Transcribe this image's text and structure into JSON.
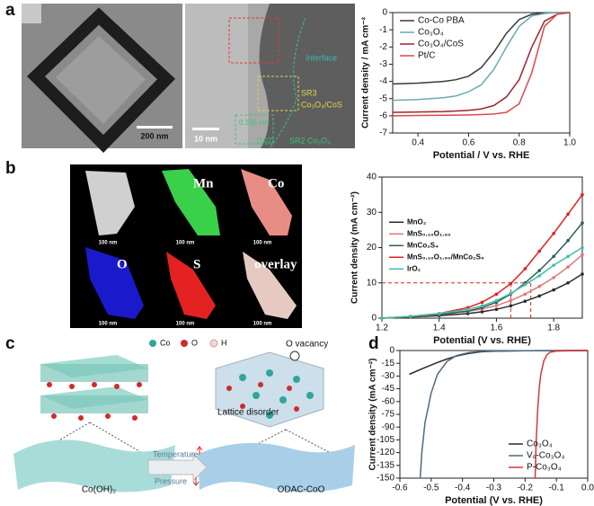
{
  "figure": {
    "panel_labels": [
      "a",
      "b",
      "c",
      "d"
    ],
    "tem": {
      "scale": "200 nm"
    },
    "hrtem": {
      "scale": "10 nm",
      "labels": [
        "Interface",
        "SR3",
        "Co₃O₄/CoS",
        "0.195 nm",
        "(102)",
        "SR2 Co₃O₄"
      ]
    },
    "eds": {
      "elements": [
        "Mn",
        "Co",
        "O",
        "S",
        "overlay"
      ],
      "scales": [
        "100 nm",
        "100 nm",
        "100 nm",
        "100 nm",
        "100 nm",
        "100 nm"
      ]
    },
    "schematic": {
      "legend": [
        "Co",
        "O",
        "H"
      ],
      "labels": [
        "O vacancy",
        "Lattice disorder",
        "Temperature",
        "Pressure",
        "Co(OH)₂",
        "ODAC-CoO"
      ]
    }
  },
  "chart_data": [
    {
      "type": "line",
      "x_label": "Potential / V vs. RHE",
      "y_label": "Current density / mA cm⁻²",
      "x": [
        0.3,
        0.4,
        0.5,
        0.55,
        0.6,
        0.65,
        0.7,
        0.75,
        0.8,
        0.85,
        0.9,
        0.95,
        1.0
      ],
      "series": [
        {
          "name": "Co-Co PBA",
          "color": "#3a3a3a",
          "values": [
            -4.15,
            -4.1,
            -4.0,
            -3.9,
            -3.7,
            -3.2,
            -2.3,
            -1.2,
            -0.4,
            -0.1,
            -0.02,
            0,
            0
          ]
        },
        {
          "name": "Co₃O₄",
          "color": "#6fa7b5",
          "values": [
            -5.1,
            -5.05,
            -4.95,
            -4.85,
            -4.6,
            -4.2,
            -3.3,
            -2.0,
            -0.8,
            -0.2,
            -0.05,
            0,
            0
          ]
        },
        {
          "name": "Co₃O₄/CoS",
          "color": "#a0262e",
          "values": [
            -5.8,
            -5.78,
            -5.75,
            -5.72,
            -5.68,
            -5.6,
            -5.4,
            -4.9,
            -3.9,
            -2.0,
            -0.5,
            -0.1,
            0
          ]
        },
        {
          "name": "Pt/C",
          "color": "#e0474c",
          "values": [
            -6.0,
            -5.98,
            -5.97,
            -5.96,
            -5.95,
            -5.93,
            -5.9,
            -5.8,
            -5.3,
            -3.5,
            -0.8,
            -0.1,
            0
          ]
        }
      ],
      "xlim": [
        0.3,
        1.0
      ],
      "xticks": [
        0.4,
        0.6,
        0.8,
        {
          "value": 1,
          "label": "1.0"
        }
      ],
      "ylim": [
        -7,
        0
      ],
      "yticks": [
        0,
        -1,
        -2,
        -3,
        -4,
        -5,
        -6,
        -7
      ],
      "legend": "upper left"
    },
    {
      "type": "line",
      "x_label": "Potential (V vs. RHE)",
      "y_label": "Current density (mA cm⁻²)",
      "x": [
        1.2,
        1.3,
        1.4,
        1.5,
        1.55,
        1.6,
        1.65,
        1.7,
        1.75,
        1.8,
        1.85,
        1.9
      ],
      "series": [
        {
          "name": "MnO₂",
          "color": "#2b2b2b",
          "values": [
            0,
            0.3,
            0.7,
            1.3,
            1.8,
            2.5,
            3.5,
            4.8,
            6.3,
            8.0,
            10,
            12.5
          ]
        },
        {
          "name": "MnS₀.₁₀O₁.₉₀",
          "color": "#e07a7a",
          "values": [
            0,
            0.4,
            1.0,
            1.9,
            2.6,
            3.6,
            5.0,
            6.8,
            9.0,
            11.5,
            14.5,
            18
          ]
        },
        {
          "name": "MnCo₂S₄",
          "color": "#2e5f5c",
          "values": [
            0,
            0.4,
            1.0,
            2.0,
            3.0,
            4.5,
            6.8,
            10,
            13.5,
            17.5,
            22,
            27
          ]
        },
        {
          "name": "MnS₀.₁₀O₁.₉₀/MnCo₂S₄",
          "color": "#e02020",
          "values": [
            0,
            0.5,
            1.3,
            3.0,
            4.5,
            6.8,
            9.8,
            14,
            19,
            24,
            29.5,
            35
          ]
        },
        {
          "name": "IrO₂",
          "color": "#3fbfa5",
          "values": [
            0,
            0.5,
            1.3,
            2.5,
            3.5,
            5,
            7,
            9.5,
            12,
            15,
            17.5,
            20
          ]
        }
      ],
      "markers": true,
      "ref_y": 10,
      "ref_x": [
        1.65,
        1.72
      ],
      "xlim": [
        1.2,
        1.9
      ],
      "xticks": [
        1.2,
        1.4,
        1.6,
        1.8
      ],
      "ylim": [
        0,
        40
      ],
      "yticks": [
        0,
        10,
        20,
        30,
        40
      ],
      "legend": "center left"
    },
    {
      "type": "line",
      "x_label": "Potential (V vs. RHE)",
      "y_label": "Current density (mA cm⁻²)",
      "series": [
        {
          "name": "Co₃O₄",
          "color": "#2b2b2b",
          "x": [
            -0.57,
            -0.52,
            -0.48,
            -0.45,
            -0.42,
            -0.38,
            -0.34,
            -0.3,
            -0.2,
            -0.1,
            0
          ],
          "values": [
            -28,
            -20,
            -14,
            -10,
            -6.5,
            -3.5,
            -1.5,
            -0.7,
            -0.3,
            -0.1,
            0
          ]
        },
        {
          "name": "Vₒ-Co₃O₄",
          "color": "#4f6a7e",
          "x": [
            -0.535,
            -0.53,
            -0.52,
            -0.5,
            -0.48,
            -0.45,
            -0.42,
            -0.38,
            -0.34,
            -0.3,
            -0.2,
            0
          ],
          "values": [
            -150,
            -120,
            -85,
            -50,
            -28,
            -13,
            -6,
            -2.5,
            -1,
            -0.5,
            -0.2,
            0
          ]
        },
        {
          "name": "P-Co₃O₄",
          "color": "#d6383a",
          "x": [
            -0.168,
            -0.165,
            -0.16,
            -0.155,
            -0.15,
            -0.14,
            -0.13,
            -0.12,
            -0.1,
            -0.05,
            0
          ],
          "values": [
            -150,
            -110,
            -70,
            -45,
            -28,
            -12,
            -5,
            -2,
            -0.6,
            -0.2,
            0
          ]
        }
      ],
      "xlim": [
        -0.6,
        0
      ],
      "xticks": [
        -0.6,
        -0.5,
        -0.4,
        -0.3,
        -0.2,
        -0.1,
        {
          "value": 0,
          "label": "0.0"
        }
      ],
      "ylim": [
        -150,
        0
      ],
      "yticks": [
        0,
        -15,
        -30,
        -45,
        -60,
        -75,
        -90,
        -105,
        -120,
        -135,
        -150
      ],
      "legend": "lower right"
    }
  ]
}
